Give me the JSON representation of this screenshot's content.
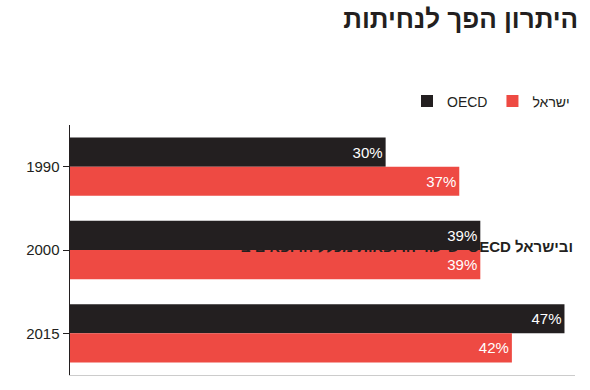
{
  "chart_data": {
    "type": "bar",
    "orientation": "horizontal",
    "title": "היתרון הפך לנחיתות",
    "subtitle": "שיעור הרופאות מכלל הרופאים ב–OECD ובישראל",
    "categories": [
      "1990",
      "2000",
      "2015"
    ],
    "series": [
      {
        "name": "OECD",
        "color": "#231f20",
        "values": [
          30,
          39,
          47
        ],
        "value_labels": [
          "30%",
          "39%",
          "47%"
        ]
      },
      {
        "name": "ישראל",
        "color": "#ee4a43",
        "values": [
          37,
          39,
          42
        ],
        "value_labels": [
          "37%",
          "39%",
          "42%"
        ]
      }
    ],
    "xlim": [
      0,
      48
    ],
    "legend": "top-right",
    "data_labels": true,
    "tick_labels": "y",
    "grid": false
  }
}
